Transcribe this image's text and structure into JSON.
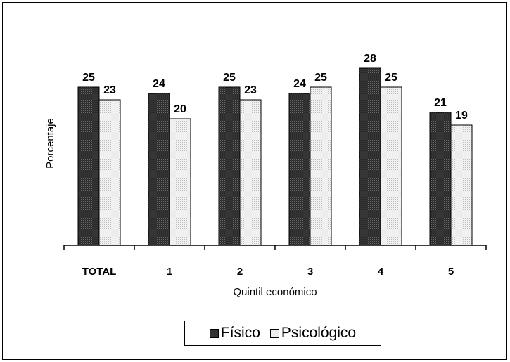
{
  "chart_data": {
    "type": "bar",
    "categories": [
      "TOTAL",
      "1",
      "2",
      "3",
      "4",
      "5"
    ],
    "series": [
      {
        "name": "Físico",
        "values": [
          25,
          24,
          25,
          24,
          28,
          21
        ],
        "color": "#333333",
        "pattern": "dark-hatch"
      },
      {
        "name": "Psicológico",
        "values": [
          23,
          20,
          23,
          25,
          25,
          19
        ],
        "color": "#eeeeee",
        "pattern": "light-dots"
      }
    ],
    "xlabel": "Quintil económico",
    "ylabel": "Porcentaje",
    "ylim": [
      0,
      28
    ],
    "grid": false,
    "legend_position": "bottom"
  }
}
